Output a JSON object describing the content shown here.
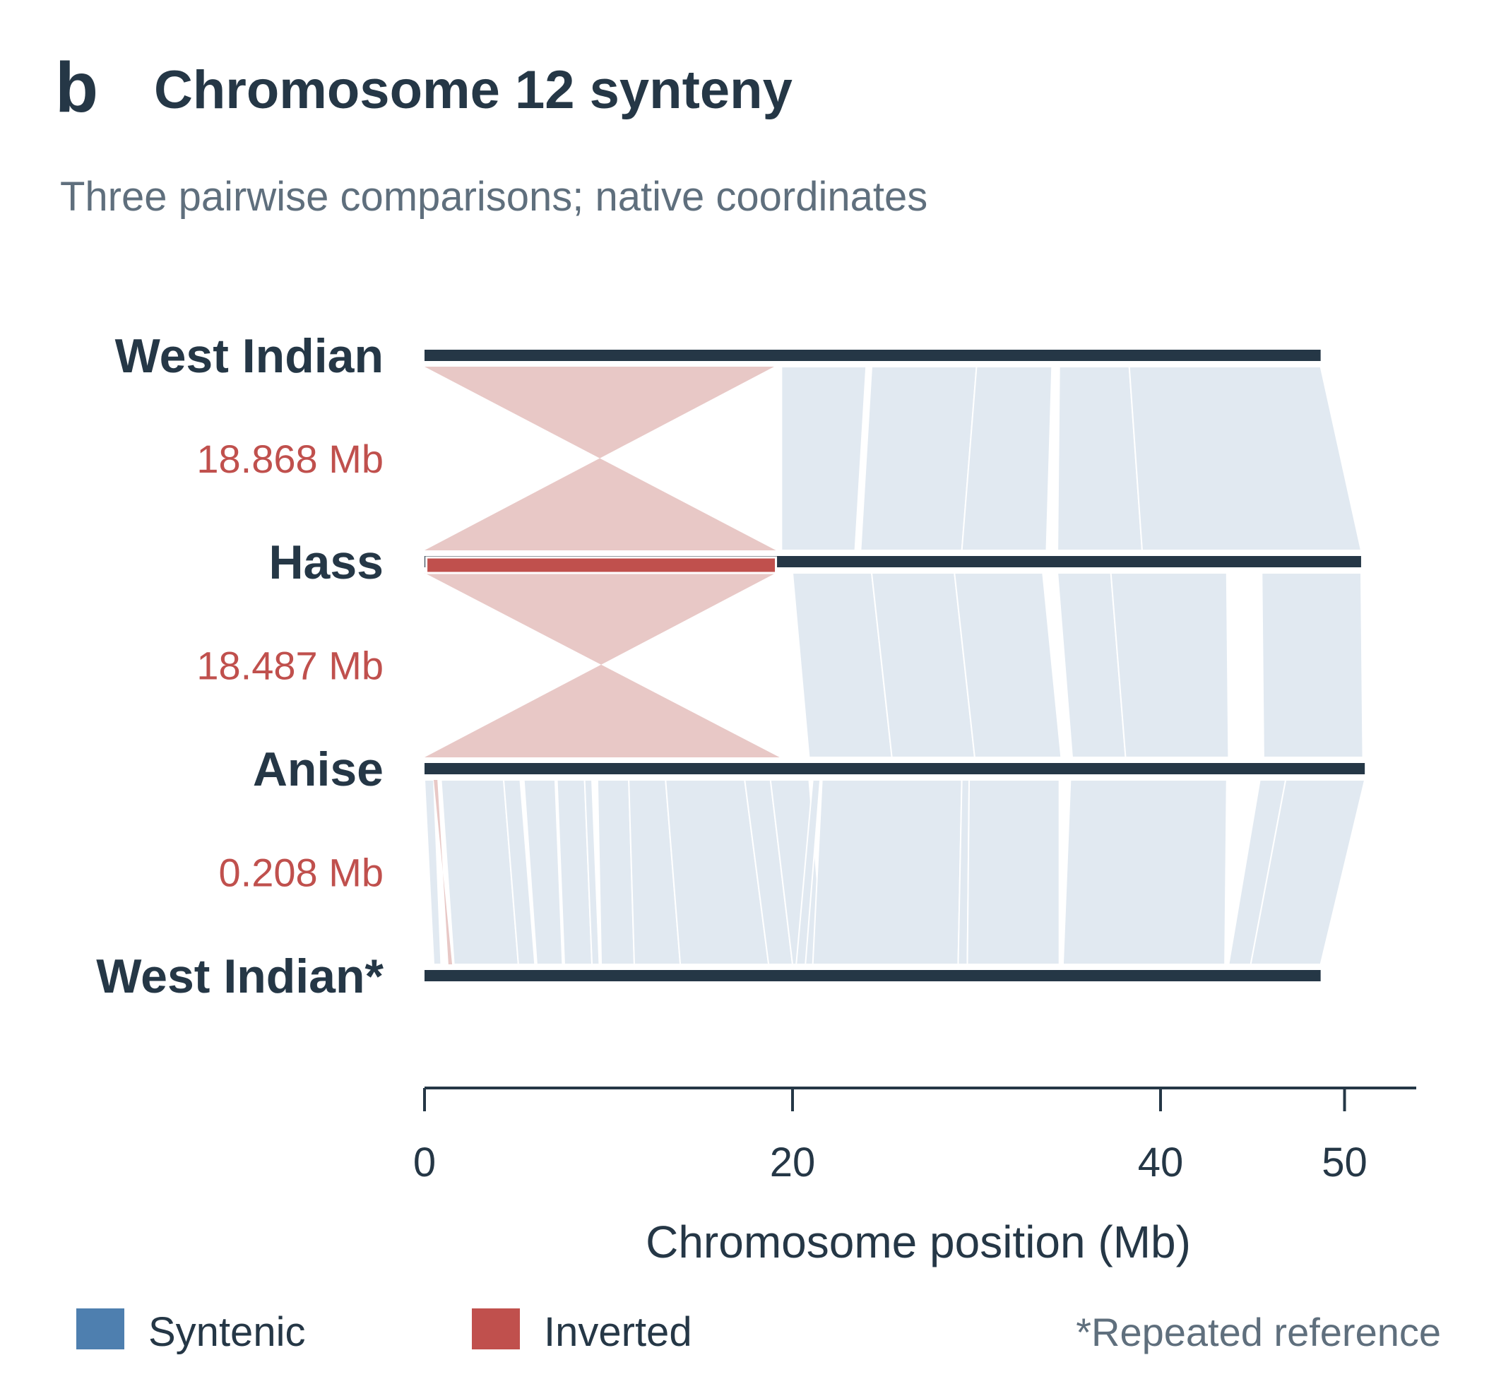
{
  "panel_letter": "b",
  "title": "Chromosome 12 synteny",
  "subtitle": "Three pairwise comparisons; native coordinates",
  "colors": {
    "text": "#253746",
    "muted": "#5f6f7d",
    "chromosome": "#253746",
    "syntenic": "#4e7faf",
    "syntenic_ribbon": "#e1e9f1",
    "inverted": "#c0504d",
    "inverted_ribbon": "#e8c8c6"
  },
  "legend": {
    "placement": "bottom",
    "items": [
      {
        "label": "Syntenic",
        "color": "#4e7faf"
      },
      {
        "label": "Inverted",
        "color": "#c0504d"
      }
    ]
  },
  "footnote": "*Repeated reference",
  "chart_data": {
    "type": "synteny",
    "xlabel": "Chromosome position (Mb)",
    "xlim": [
      0,
      54
    ],
    "xticks": [
      0,
      20,
      40,
      50
    ],
    "genomes": [
      {
        "label": "West Indian",
        "length": 48.7,
        "highlight": null
      },
      {
        "label": "Hass",
        "length": 50.9,
        "highlight": [
          0.1,
          19.1
        ]
      },
      {
        "label": "Anise",
        "length": 51.1,
        "highlight": null
      },
      {
        "label": "West Indian*",
        "length": 48.7,
        "highlight": null
      }
    ],
    "comparisons": [
      {
        "inversion_label": "18.868 Mb",
        "inversions": [
          {
            "top": [
              0,
              19.0
            ],
            "bottom": [
              0,
              19.1
            ]
          }
        ],
        "blocks": [
          {
            "top": [
              19.4,
              24.0
            ],
            "bottom": [
              19.4,
              23.4
            ]
          },
          {
            "top": [
              24.3,
              30.0
            ],
            "bottom": [
              23.7,
              29.2
            ]
          },
          {
            "top": [
              30.0,
              34.1
            ],
            "bottom": [
              29.2,
              33.8
            ]
          },
          {
            "top": [
              34.5,
              38.3
            ],
            "bottom": [
              34.4,
              39.0
            ]
          },
          {
            "top": [
              38.3,
              48.7
            ],
            "bottom": [
              39.0,
              50.9
            ]
          }
        ]
      },
      {
        "inversion_label": "18.487 Mb",
        "inversions": [
          {
            "top": [
              0,
              19.1
            ],
            "bottom": [
              0,
              19.3
            ]
          }
        ],
        "blocks": [
          {
            "top": [
              20.0,
              24.3
            ],
            "bottom": [
              20.9,
              25.4
            ]
          },
          {
            "top": [
              24.3,
              28.8
            ],
            "bottom": [
              25.4,
              29.9
            ]
          },
          {
            "top": [
              28.8,
              33.6
            ],
            "bottom": [
              29.9,
              34.6
            ]
          },
          {
            "top": [
              34.4,
              37.3
            ],
            "bottom": [
              35.2,
              38.1
            ]
          },
          {
            "top": [
              37.3,
              43.6
            ],
            "bottom": [
              38.1,
              43.7
            ]
          },
          {
            "top": [
              45.5,
              50.9
            ],
            "bottom": [
              45.6,
              51.0
            ]
          }
        ]
      },
      {
        "inversion_label": "0.208 Mb",
        "inversions": [
          {
            "top": [
              0.5,
              0.7
            ],
            "bottom": [
              1.3,
              1.5
            ]
          }
        ],
        "blocks": [
          {
            "top": [
              0,
              0.5
            ],
            "bottom": [
              0.5,
              0.9
            ]
          },
          {
            "top": [
              0.9,
              4.3
            ],
            "bottom": [
              1.6,
              5.1
            ]
          },
          {
            "top": [
              4.3,
              5.2
            ],
            "bottom": [
              5.1,
              6.0
            ]
          },
          {
            "top": [
              5.4,
              7.1
            ],
            "bottom": [
              6.1,
              7.5
            ]
          },
          {
            "top": [
              7.2,
              8.7
            ],
            "bottom": [
              7.6,
              9.1
            ]
          },
          {
            "top": [
              8.7,
              9.1
            ],
            "bottom": [
              9.1,
              9.5
            ]
          },
          {
            "top": [
              9.4,
              11.1
            ],
            "bottom": [
              9.6,
              11.4
            ]
          },
          {
            "top": [
              11.1,
              13.1
            ],
            "bottom": [
              11.4,
              13.9
            ]
          },
          {
            "top": [
              13.1,
              17.4
            ],
            "bottom": [
              13.9,
              18.7
            ]
          },
          {
            "top": [
              17.4,
              18.8
            ],
            "bottom": [
              18.7,
              20.0
            ]
          },
          {
            "top": [
              18.8,
              20.9
            ],
            "bottom": [
              20.0,
              21.7
            ]
          },
          {
            "top": [
              21.1,
              21.5
            ],
            "bottom": [
              20.2,
              20.7
            ]
          },
          {
            "top": [
              21.6,
              29.2
            ],
            "bottom": [
              21.1,
              29.0
            ]
          },
          {
            "top": [
              29.2,
              29.6
            ],
            "bottom": [
              29.0,
              29.5
            ]
          },
          {
            "top": [
              29.6,
              34.5
            ],
            "bottom": [
              29.5,
              34.5
            ]
          },
          {
            "top": [
              35.1,
              43.6
            ],
            "bottom": [
              34.7,
              43.5
            ]
          },
          {
            "top": [
              45.4,
              46.8
            ],
            "bottom": [
              43.7,
              44.9
            ]
          },
          {
            "top": [
              46.8,
              51.1
            ],
            "bottom": [
              44.9,
              48.7
            ]
          }
        ]
      }
    ]
  }
}
